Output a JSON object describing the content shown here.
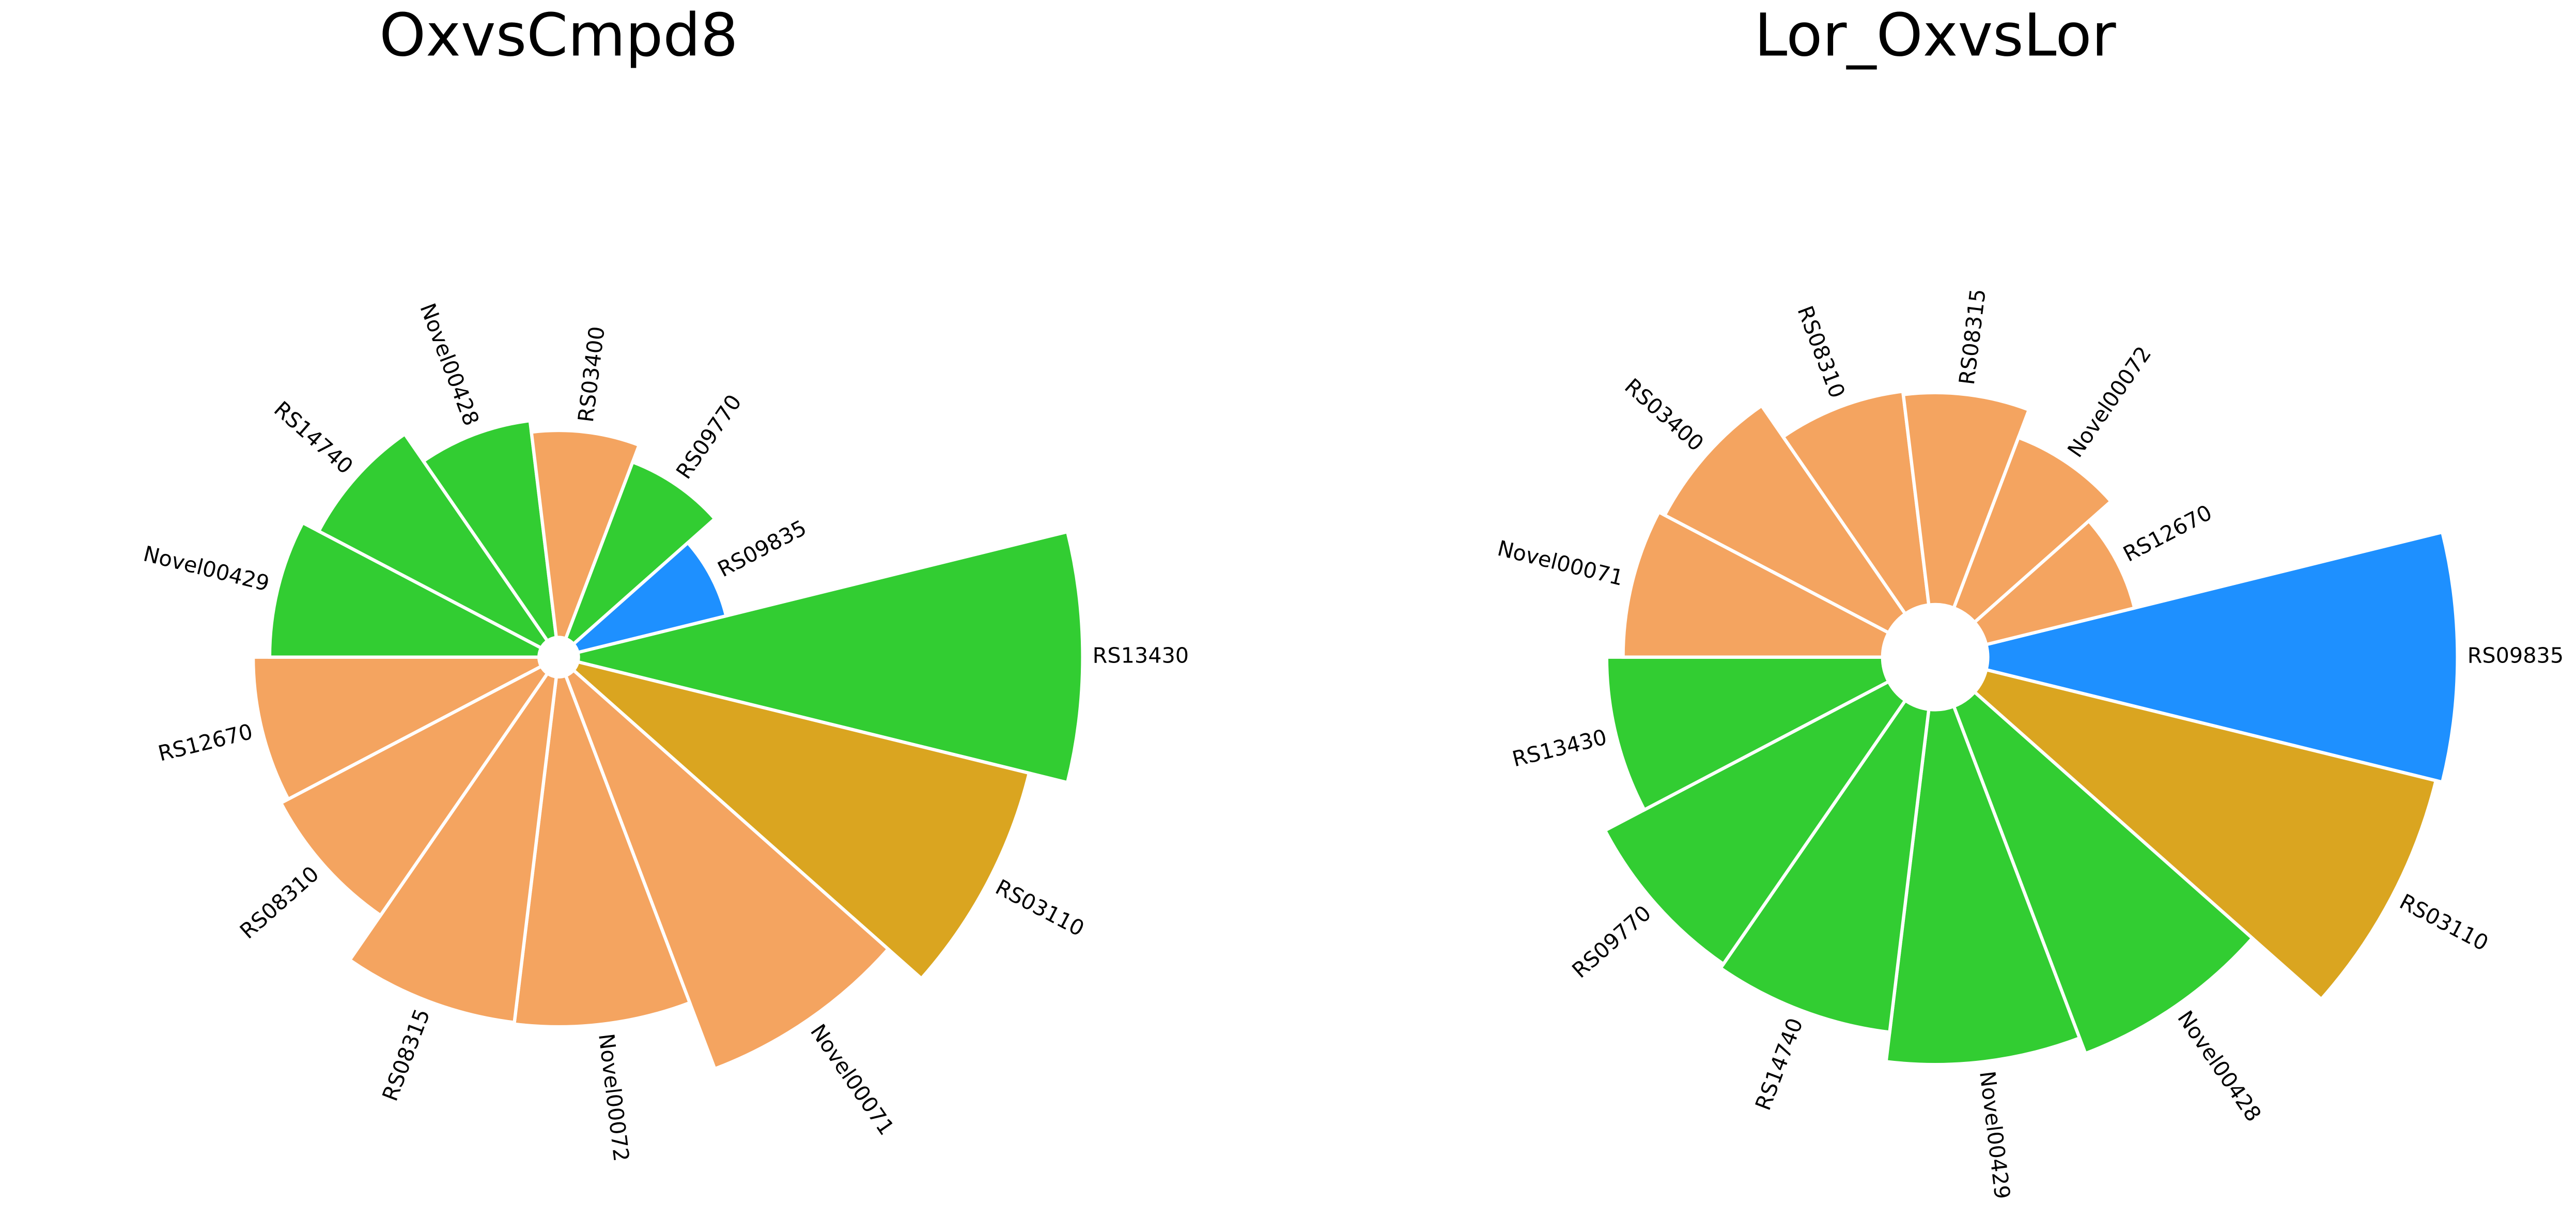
{
  "chart_data": [
    {
      "type": "bar",
      "projection": "polar",
      "title": "OxvsCmpd8",
      "categories": [
        "RS13430",
        "RS03110",
        "Novel00071",
        "Novel00072",
        "RS08315",
        "RS08310",
        "RS12670",
        "Novel00429",
        "RS14740",
        "Novel00428",
        "RS03400",
        "RS09770",
        "RS09835"
      ],
      "values": [
        3.07,
        2.83,
        2.56,
        2.13,
        2.12,
        1.79,
        1.74,
        1.64,
        1.53,
        1.33,
        1.26,
        1.15,
        0.93
      ],
      "colors": [
        "#32cd32",
        "#daa520",
        "#f4a460",
        "#f4a460",
        "#f4a460",
        "#f4a460",
        "#f4a460",
        "#32cd32",
        "#32cd32",
        "#32cd32",
        "#f4a460",
        "#32cd32",
        "#1e90ff"
      ]
    },
    {
      "type": "bar",
      "projection": "polar",
      "title": "Lor_OxvsLor",
      "categories": [
        "RS09835",
        "RS03110",
        "Novel00428",
        "Novel00429",
        "RS14740",
        "RS09770",
        "RS13430",
        "Novel00071",
        "RS03400",
        "RS08310",
        "RS08315",
        "Novel00072",
        "RS12670"
      ],
      "values": [
        2.86,
        2.82,
        2.26,
        2.16,
        1.98,
        1.95,
        1.68,
        1.58,
        1.54,
        1.31,
        1.29,
        1.11,
        0.93
      ],
      "colors": [
        "#1e90ff",
        "#daa520",
        "#32cd32",
        "#32cd32",
        "#32cd32",
        "#32cd32",
        "#32cd32",
        "#f4a460",
        "#f4a460",
        "#f4a460",
        "#f4a460",
        "#f4a460",
        "#f4a460"
      ]
    }
  ]
}
